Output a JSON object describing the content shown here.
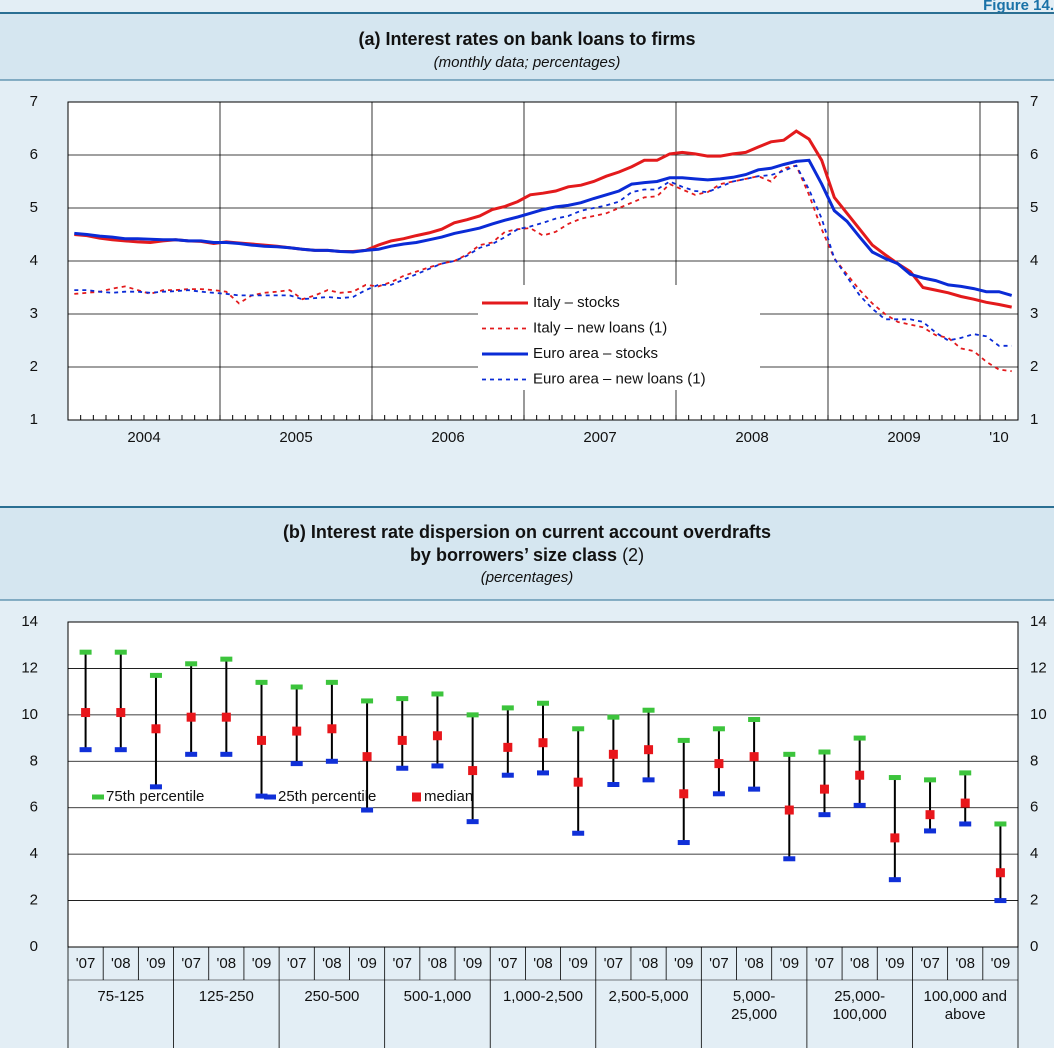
{
  "figure_label": "Figure 14.",
  "chart_data": [
    {
      "type": "line",
      "title": "(a) Interest rates on bank loans to firms",
      "subtitle": "(monthly data; percentages)",
      "categories": [
        "2004",
        null,
        null,
        null,
        null,
        null,
        null,
        null,
        null,
        null,
        null,
        null,
        "2005",
        null,
        null,
        null,
        null,
        null,
        null,
        null,
        null,
        null,
        null,
        null,
        "2006",
        null,
        null,
        null,
        null,
        null,
        null,
        null,
        null,
        null,
        null,
        null,
        "2007",
        null,
        null,
        null,
        null,
        null,
        null,
        null,
        null,
        null,
        null,
        null,
        "2008",
        null,
        null,
        null,
        null,
        null,
        null,
        null,
        null,
        null,
        null,
        null,
        "2009",
        null,
        null,
        null,
        null,
        null,
        null,
        null,
        null,
        null,
        null,
        null,
        "'10",
        null,
        null
      ],
      "ylim": [
        1,
        7
      ],
      "yticks": [
        1,
        2,
        3,
        4,
        5,
        6,
        7
      ],
      "grid": true,
      "legend": "bottom-center",
      "series": [
        {
          "name": "Italy –  stocks",
          "color": "#e31a1c",
          "dash": false,
          "values": [
            4.5,
            4.48,
            4.43,
            4.4,
            4.38,
            4.36,
            4.35,
            4.38,
            4.4,
            4.38,
            4.37,
            4.33,
            4.36,
            4.34,
            4.32,
            4.3,
            4.28,
            4.25,
            4.22,
            4.2,
            4.2,
            4.18,
            4.18,
            4.2,
            4.3,
            4.38,
            4.42,
            4.48,
            4.53,
            4.6,
            4.72,
            4.78,
            4.85,
            4.97,
            5.03,
            5.12,
            5.25,
            5.28,
            5.32,
            5.4,
            5.43,
            5.5,
            5.6,
            5.68,
            5.78,
            5.9,
            5.9,
            6.02,
            6.05,
            6.02,
            5.98,
            5.98,
            6.02,
            6.05,
            6.15,
            6.25,
            6.28,
            6.45,
            6.3,
            5.9,
            5.2,
            4.9,
            4.6,
            4.3,
            4.12,
            3.95,
            3.8,
            3.5,
            3.45,
            3.4,
            3.33,
            3.28,
            3.22,
            3.18,
            3.13
          ]
        },
        {
          "name": "Italy – new loans (1)",
          "color": "#e31a1c",
          "dash": true,
          "values": [
            3.38,
            3.4,
            3.42,
            3.48,
            3.52,
            3.45,
            3.38,
            3.45,
            3.45,
            3.47,
            3.47,
            3.45,
            3.42,
            3.2,
            3.35,
            3.4,
            3.42,
            3.45,
            3.28,
            3.35,
            3.45,
            3.4,
            3.42,
            3.55,
            3.52,
            3.6,
            3.72,
            3.8,
            3.88,
            3.95,
            4.0,
            4.12,
            4.3,
            4.35,
            4.55,
            4.6,
            4.62,
            4.48,
            4.55,
            4.7,
            4.8,
            4.85,
            4.9,
            5.0,
            5.1,
            5.2,
            5.22,
            5.45,
            5.35,
            5.25,
            5.3,
            5.45,
            5.5,
            5.55,
            5.6,
            5.5,
            5.75,
            5.8,
            5.25,
            4.6,
            4.05,
            3.75,
            3.45,
            3.2,
            3.0,
            2.85,
            2.8,
            2.75,
            2.6,
            2.55,
            2.35,
            2.3,
            2.1,
            1.95,
            1.92
          ]
        },
        {
          "name": "Euro area – stocks",
          "color": "#0a2bd6",
          "dash": false,
          "values": [
            4.52,
            4.5,
            4.47,
            4.45,
            4.42,
            4.42,
            4.41,
            4.4,
            4.4,
            4.38,
            4.38,
            4.35,
            4.35,
            4.33,
            4.3,
            4.28,
            4.27,
            4.25,
            4.22,
            4.2,
            4.2,
            4.18,
            4.17,
            4.2,
            4.22,
            4.28,
            4.32,
            4.35,
            4.4,
            4.45,
            4.52,
            4.57,
            4.62,
            4.7,
            4.77,
            4.83,
            4.9,
            4.97,
            5.02,
            5.05,
            5.1,
            5.18,
            5.25,
            5.32,
            5.45,
            5.48,
            5.5,
            5.57,
            5.57,
            5.55,
            5.53,
            5.55,
            5.58,
            5.63,
            5.72,
            5.75,
            5.82,
            5.88,
            5.9,
            5.45,
            4.95,
            4.75,
            4.45,
            4.17,
            4.05,
            3.95,
            3.75,
            3.68,
            3.63,
            3.55,
            3.52,
            3.48,
            3.42,
            3.42,
            3.35
          ]
        },
        {
          "name": "Euro area – new loans (1)",
          "color": "#0a2bd6",
          "dash": true,
          "values": [
            3.45,
            3.45,
            3.42,
            3.4,
            3.42,
            3.42,
            3.4,
            3.42,
            3.43,
            3.45,
            3.42,
            3.4,
            3.38,
            3.35,
            3.35,
            3.35,
            3.35,
            3.35,
            3.28,
            3.3,
            3.32,
            3.3,
            3.32,
            3.45,
            3.55,
            3.55,
            3.65,
            3.75,
            3.85,
            3.95,
            4.0,
            4.1,
            4.25,
            4.32,
            4.45,
            4.6,
            4.65,
            4.72,
            4.8,
            4.85,
            4.95,
            5.0,
            5.05,
            5.12,
            5.3,
            5.35,
            5.35,
            5.5,
            5.4,
            5.32,
            5.3,
            5.4,
            5.5,
            5.55,
            5.6,
            5.62,
            5.7,
            5.8,
            5.35,
            4.8,
            4.05,
            3.7,
            3.35,
            3.1,
            2.9,
            2.9,
            2.9,
            2.85,
            2.65,
            2.5,
            2.55,
            2.62,
            2.58,
            2.4,
            2.4
          ]
        }
      ]
    },
    {
      "type": "range",
      "title": [
        "(b) Interest rate dispersion on current account overdrafts",
        "by borrowers’ size class"
      ],
      "title_note": "(2)",
      "subtitle": "(percentages)",
      "categories": [
        "'07",
        "'08",
        "'09",
        "'07",
        "'08",
        "'09",
        "'07",
        "'08",
        "'09",
        "'07",
        "'08",
        "'09",
        "'07",
        "'08",
        "'09",
        "'07",
        "'08",
        "'09",
        "'07",
        "'08",
        "'09",
        "'07",
        "'08",
        "'09",
        "'07",
        "'08",
        "'09"
      ],
      "groups": [
        "75-125",
        "125-250",
        "250-500",
        "500-1,000",
        "1,000-2,500",
        "2,500-5,000",
        "5,000-\n25,000",
        "25,000-\n100,000",
        "100,000 and\nabove"
      ],
      "ylim": [
        0,
        14
      ],
      "yticks": [
        0,
        2,
        4,
        6,
        8,
        10,
        12,
        14
      ],
      "grid": true,
      "legend": "bottom-left",
      "series": [
        {
          "name": "75th percentile",
          "color": "#3cc43c",
          "values": [
            12.7,
            12.7,
            11.7,
            12.2,
            12.4,
            11.4,
            11.2,
            11.4,
            10.6,
            10.7,
            10.9,
            10.0,
            10.3,
            10.5,
            9.4,
            9.9,
            10.2,
            8.9,
            9.4,
            9.8,
            8.3,
            8.4,
            9.0,
            7.3,
            7.2,
            7.5,
            5.3
          ]
        },
        {
          "name": "25th percentile",
          "color": "#1030d8",
          "values": [
            8.5,
            8.5,
            6.9,
            8.3,
            8.3,
            6.5,
            7.9,
            8.0,
            5.9,
            7.7,
            7.8,
            5.4,
            7.4,
            7.5,
            4.9,
            7.0,
            7.2,
            4.5,
            6.6,
            6.8,
            3.8,
            5.7,
            6.1,
            2.9,
            5.0,
            5.3,
            2.0
          ]
        },
        {
          "name": "median",
          "color": "#e8161b",
          "values": [
            10.1,
            10.1,
            9.4,
            9.9,
            9.9,
            8.9,
            9.3,
            9.4,
            8.2,
            8.9,
            9.1,
            7.6,
            8.6,
            8.8,
            7.1,
            8.3,
            8.5,
            6.6,
            7.9,
            8.2,
            5.9,
            6.8,
            7.4,
            4.7,
            5.7,
            6.2,
            3.2
          ]
        }
      ]
    }
  ]
}
